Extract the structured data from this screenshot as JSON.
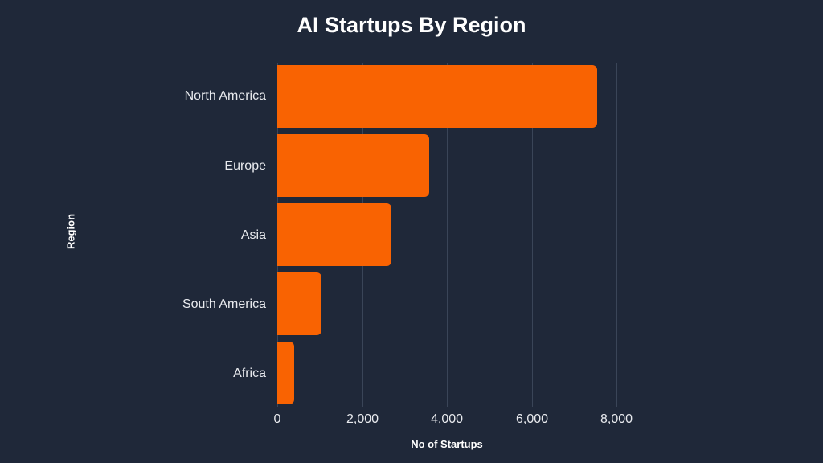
{
  "chart_data": {
    "type": "bar",
    "orientation": "horizontal",
    "title": "AI Startups By Region",
    "xlabel": "No of Startups",
    "ylabel": "Region",
    "categories": [
      "North America",
      "Europe",
      "Asia",
      "South America",
      "Africa"
    ],
    "values": [
      7550,
      3580,
      2690,
      1040,
      400
    ],
    "xlim": [
      0,
      8000
    ],
    "xticks": [
      "0",
      "2,000",
      "4,000",
      "6,000",
      "8,000"
    ],
    "grid": true,
    "legend": null,
    "bar_color": "#f96302",
    "background_color": "#1f2839"
  }
}
